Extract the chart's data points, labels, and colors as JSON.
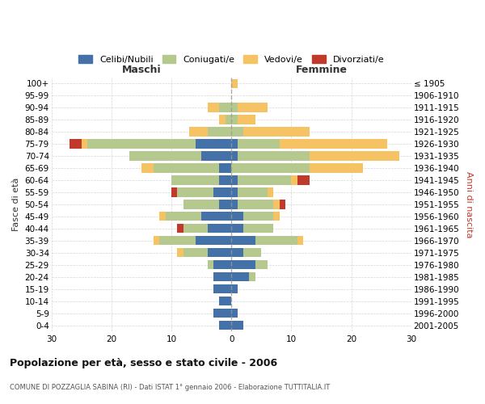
{
  "age_groups": [
    "0-4",
    "5-9",
    "10-14",
    "15-19",
    "20-24",
    "25-29",
    "30-34",
    "35-39",
    "40-44",
    "45-49",
    "50-54",
    "55-59",
    "60-64",
    "65-69",
    "70-74",
    "75-79",
    "80-84",
    "85-89",
    "90-94",
    "95-99",
    "100+"
  ],
  "birth_years": [
    "2001-2005",
    "1996-2000",
    "1991-1995",
    "1986-1990",
    "1981-1985",
    "1976-1980",
    "1971-1975",
    "1966-1970",
    "1961-1965",
    "1956-1960",
    "1951-1955",
    "1946-1950",
    "1941-1945",
    "1936-1940",
    "1931-1935",
    "1926-1930",
    "1921-1925",
    "1916-1920",
    "1911-1915",
    "1906-1910",
    "≤ 1905"
  ],
  "maschi": {
    "celibi": [
      2,
      3,
      2,
      3,
      3,
      3,
      4,
      6,
      4,
      5,
      2,
      3,
      2,
      2,
      5,
      6,
      0,
      0,
      0,
      0,
      0
    ],
    "coniugati": [
      0,
      0,
      0,
      0,
      0,
      1,
      4,
      6,
      4,
      6,
      6,
      6,
      8,
      11,
      12,
      18,
      4,
      1,
      2,
      0,
      0
    ],
    "vedovi": [
      0,
      0,
      0,
      0,
      0,
      0,
      1,
      1,
      0,
      1,
      0,
      0,
      0,
      2,
      0,
      1,
      3,
      1,
      2,
      0,
      0
    ],
    "divorziati": [
      0,
      0,
      0,
      0,
      0,
      0,
      0,
      0,
      1,
      0,
      0,
      1,
      0,
      0,
      0,
      2,
      0,
      0,
      0,
      0,
      0
    ]
  },
  "femmine": {
    "nubili": [
      2,
      1,
      0,
      1,
      3,
      4,
      2,
      4,
      2,
      2,
      1,
      1,
      1,
      0,
      1,
      1,
      0,
      0,
      0,
      0,
      0
    ],
    "coniugate": [
      0,
      0,
      0,
      0,
      1,
      2,
      3,
      7,
      5,
      5,
      6,
      5,
      9,
      13,
      12,
      7,
      2,
      1,
      1,
      0,
      0
    ],
    "vedove": [
      0,
      0,
      0,
      0,
      0,
      0,
      0,
      1,
      0,
      1,
      1,
      1,
      1,
      9,
      15,
      18,
      11,
      3,
      5,
      0,
      1
    ],
    "divorziate": [
      0,
      0,
      0,
      0,
      0,
      0,
      0,
      0,
      0,
      0,
      1,
      0,
      2,
      0,
      0,
      0,
      0,
      0,
      0,
      0,
      0
    ]
  },
  "colors": {
    "celibi": "#4472a8",
    "coniugati": "#b5c98e",
    "vedovi": "#f5c264",
    "divorziati": "#c0392b"
  },
  "xlim": 30,
  "title": "Popolazione per età, sesso e stato civile - 2006",
  "subtitle": "COMUNE DI POZZAGLIA SABINA (RI) - Dati ISTAT 1° gennaio 2006 - Elaborazione TUTTITALIA.IT",
  "ylabel_left": "Fasce di età",
  "ylabel_right": "Anni di nascita",
  "xlabel_maschi": "Maschi",
  "xlabel_femmine": "Femmine",
  "legend_labels": [
    "Celibi/Nubili",
    "Coniugati/e",
    "Vedovi/e",
    "Divorziati/e"
  ]
}
